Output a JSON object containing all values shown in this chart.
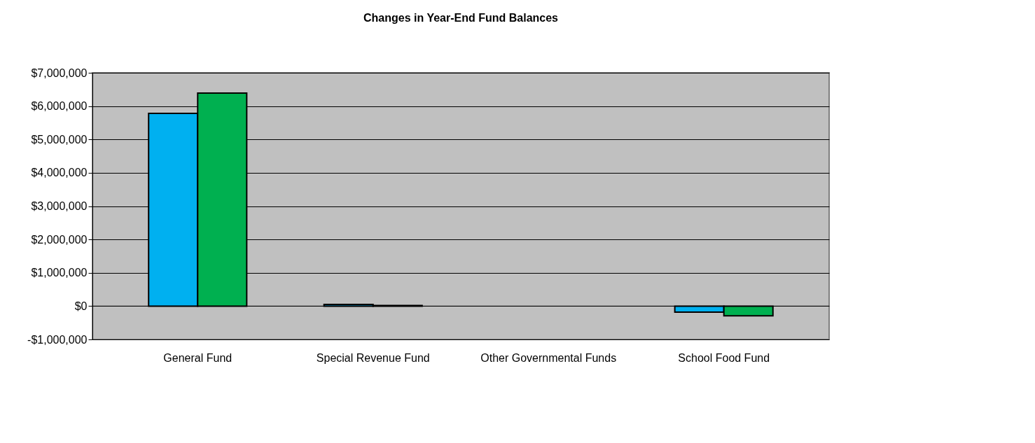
{
  "chart_data": {
    "type": "bar",
    "title": "Changes in Year-End Fund Balances",
    "categories": [
      "General Fund",
      "Special Revenue Fund",
      "Other Governmental Funds",
      "School Food Fund"
    ],
    "series": [
      {
        "color": "#00b0f0",
        "values": [
          5780000,
          50000,
          null,
          -180000
        ]
      },
      {
        "color": "#00b050",
        "values": [
          6390000,
          20000,
          null,
          -290000
        ]
      }
    ],
    "ylim": [
      -1000000,
      7000000
    ],
    "yticks": [
      {
        "value": -1000000,
        "label": "-$1,000,000"
      },
      {
        "value": 0,
        "label": "$0"
      },
      {
        "value": 1000000,
        "label": "$1,000,000"
      },
      {
        "value": 2000000,
        "label": "$2,000,000"
      },
      {
        "value": 3000000,
        "label": "$3,000,000"
      },
      {
        "value": 4000000,
        "label": "$4,000,000"
      },
      {
        "value": 5000000,
        "label": "$5,000,000"
      },
      {
        "value": 6000000,
        "label": "$6,000,000"
      },
      {
        "value": 7000000,
        "label": "$7,000,000"
      }
    ],
    "grid": "y",
    "legend": false
  }
}
